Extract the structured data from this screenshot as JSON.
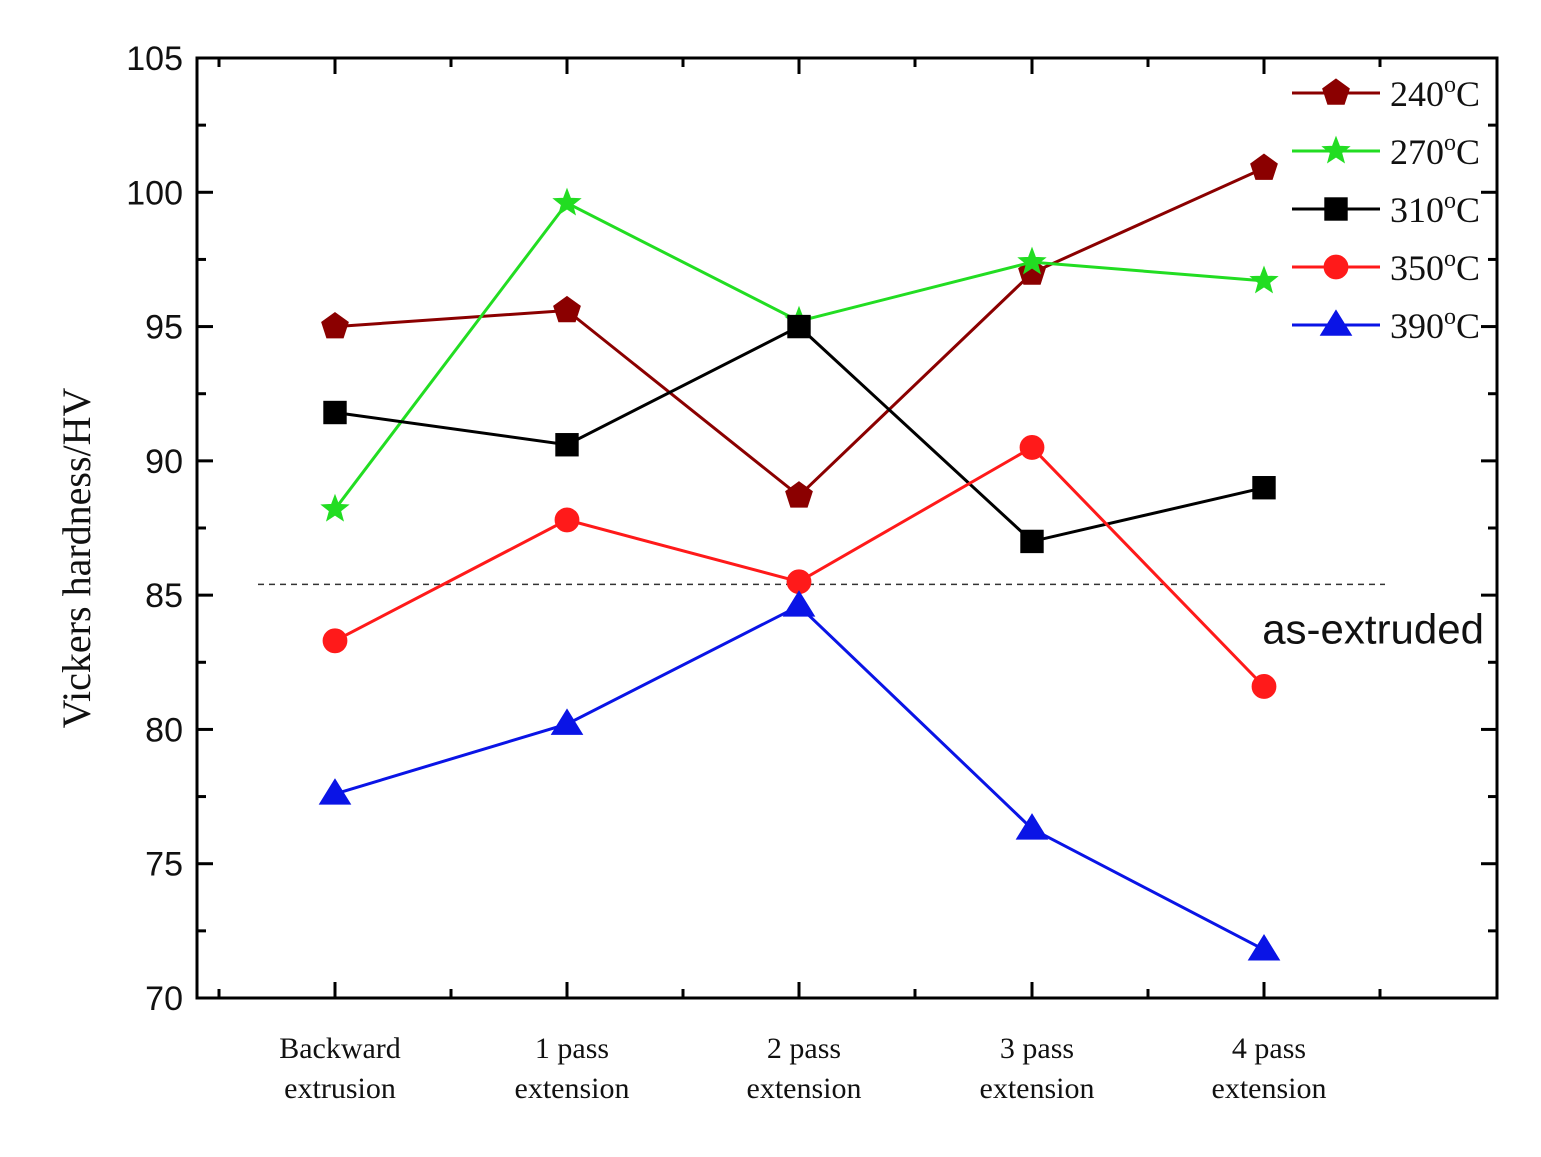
{
  "chart_data": {
    "type": "line",
    "title": "",
    "xlabel": "",
    "ylabel": "Vickers hardness/HV",
    "ylim": [
      70,
      105
    ],
    "yticks": [
      "70",
      "75",
      "80",
      "85",
      "90",
      "95",
      "100",
      "105"
    ],
    "categories": [
      [
        "Backward",
        "extrusion"
      ],
      [
        "1 pass",
        "extension"
      ],
      [
        "2 pass",
        "extension"
      ],
      [
        "3 pass",
        "extension"
      ],
      [
        "4 pass",
        "extension"
      ]
    ],
    "series": [
      {
        "name": "240",
        "unit": "oC",
        "color": "#8b0000",
        "marker": "pentagon",
        "values": [
          95.0,
          95.6,
          88.7,
          97.0,
          100.9
        ]
      },
      {
        "name": "270",
        "unit": "oC",
        "color": "#22dd22",
        "marker": "star",
        "values": [
          88.2,
          99.6,
          95.2,
          97.4,
          96.7
        ]
      },
      {
        "name": "310",
        "unit": "oC",
        "color": "#000000",
        "marker": "square",
        "values": [
          91.8,
          90.6,
          95.0,
          87.0,
          89.0
        ]
      },
      {
        "name": "350",
        "unit": "oC",
        "color": "#ff1a1a",
        "marker": "circle",
        "values": [
          83.3,
          87.8,
          85.5,
          90.5,
          81.6
        ]
      },
      {
        "name": "390",
        "unit": "oC",
        "color": "#0a14e6",
        "marker": "triangle",
        "values": [
          77.6,
          80.2,
          84.6,
          76.3,
          71.8
        ]
      }
    ],
    "reference_line": {
      "value": 85.4,
      "label": "as-extruded"
    },
    "legend_position": "top-right",
    "grid": false
  }
}
